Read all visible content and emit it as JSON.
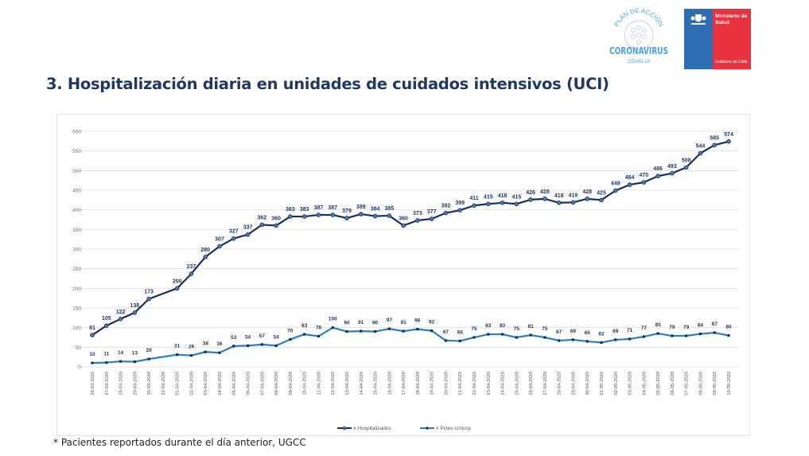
{
  "header": {
    "title": "3. Hospitalización diaria en unidades de cuidados intensivos (UCI)",
    "logo_plan": {
      "top_text": "PLAN DE ACCIÓN",
      "main_text": "CORONAVIRUS",
      "sub_text": "COVID-19",
      "color": "#4aa3df"
    },
    "logo_ministry": {
      "name_line1": "Ministerio de",
      "name_line2": "Salud",
      "gov_text": "Gobierno de Chile",
      "blue": "#2e6db4",
      "red": "#e8333f"
    }
  },
  "footnote": "* Pacientes reportados durante el día anterior, UGCC",
  "chart_data": {
    "type": "line",
    "title": "",
    "xlabel": "",
    "ylabel": "",
    "ylim": [
      0,
      600
    ],
    "yticks": [
      0,
      50,
      100,
      150,
      200,
      250,
      300,
      350,
      400,
      450,
      500,
      550,
      600
    ],
    "grid": true,
    "legend_position": "bottom",
    "categories": [
      "26-03-2020",
      "27-03-2020",
      "28-03-2020",
      "29-03-2020",
      "30-03-2020",
      "31-03-2020",
      "01-04-2020",
      "02-04-2020",
      "03-04-2020",
      "04-04-2020",
      "05-04-2020",
      "06-04-2020",
      "07-04-2020",
      "08-04-2020",
      "09-04-2020",
      "10-04-2020",
      "11-04-2020",
      "12-04-2020",
      "13-04-2020",
      "14-04-2020",
      "15-04-2020",
      "16-04-2020",
      "17-04-2020",
      "18-04-2020",
      "19-04-2020",
      "20-04-2020",
      "21-04-2020",
      "22-04-2020",
      "23-04-2020",
      "24-04-2020",
      "25-04-2020",
      "26-04-2020",
      "27-04-2020",
      "28-04-2020",
      "29-04-2020",
      "30-04-2020",
      "01-05-2020",
      "02-05-2020",
      "03-05-2020",
      "04-05-2020",
      "05-05-2020",
      "06-05-2020",
      "07-05-2020",
      "08-05-2020",
      "09-05-2020",
      "10-05-2020"
    ],
    "series": [
      {
        "name": "# Hospitalizados",
        "color": "#1a2e5c",
        "marker_color": "#4a7ab8",
        "values": [
          81,
          105,
          122,
          138,
          173,
          null,
          200,
          237,
          280,
          307,
          327,
          337,
          362,
          360,
          383,
          383,
          387,
          387,
          379,
          389,
          384,
          385,
          360,
          373,
          377,
          392,
          399,
          411,
          415,
          418,
          415,
          426,
          428,
          418,
          419,
          428,
          425,
          449,
          464,
          470,
          486,
          493,
          508,
          544,
          565,
          574
        ]
      },
      {
        "name": "# Pctes críticos",
        "color": "#2a7fc1",
        "marker_color": "#1a2e5c",
        "values": [
          10,
          11,
          14,
          13,
          20,
          null,
          31,
          29,
          38,
          36,
          53,
          54,
          57,
          54,
          70,
          83,
          78,
          100,
          90,
          91,
          90,
          97,
          91,
          96,
          92,
          67,
          66,
          75,
          83,
          83,
          75,
          81,
          75,
          67,
          69,
          65,
          62,
          69,
          71,
          77,
          85,
          79,
          79,
          84,
          87,
          80
        ]
      }
    ]
  }
}
